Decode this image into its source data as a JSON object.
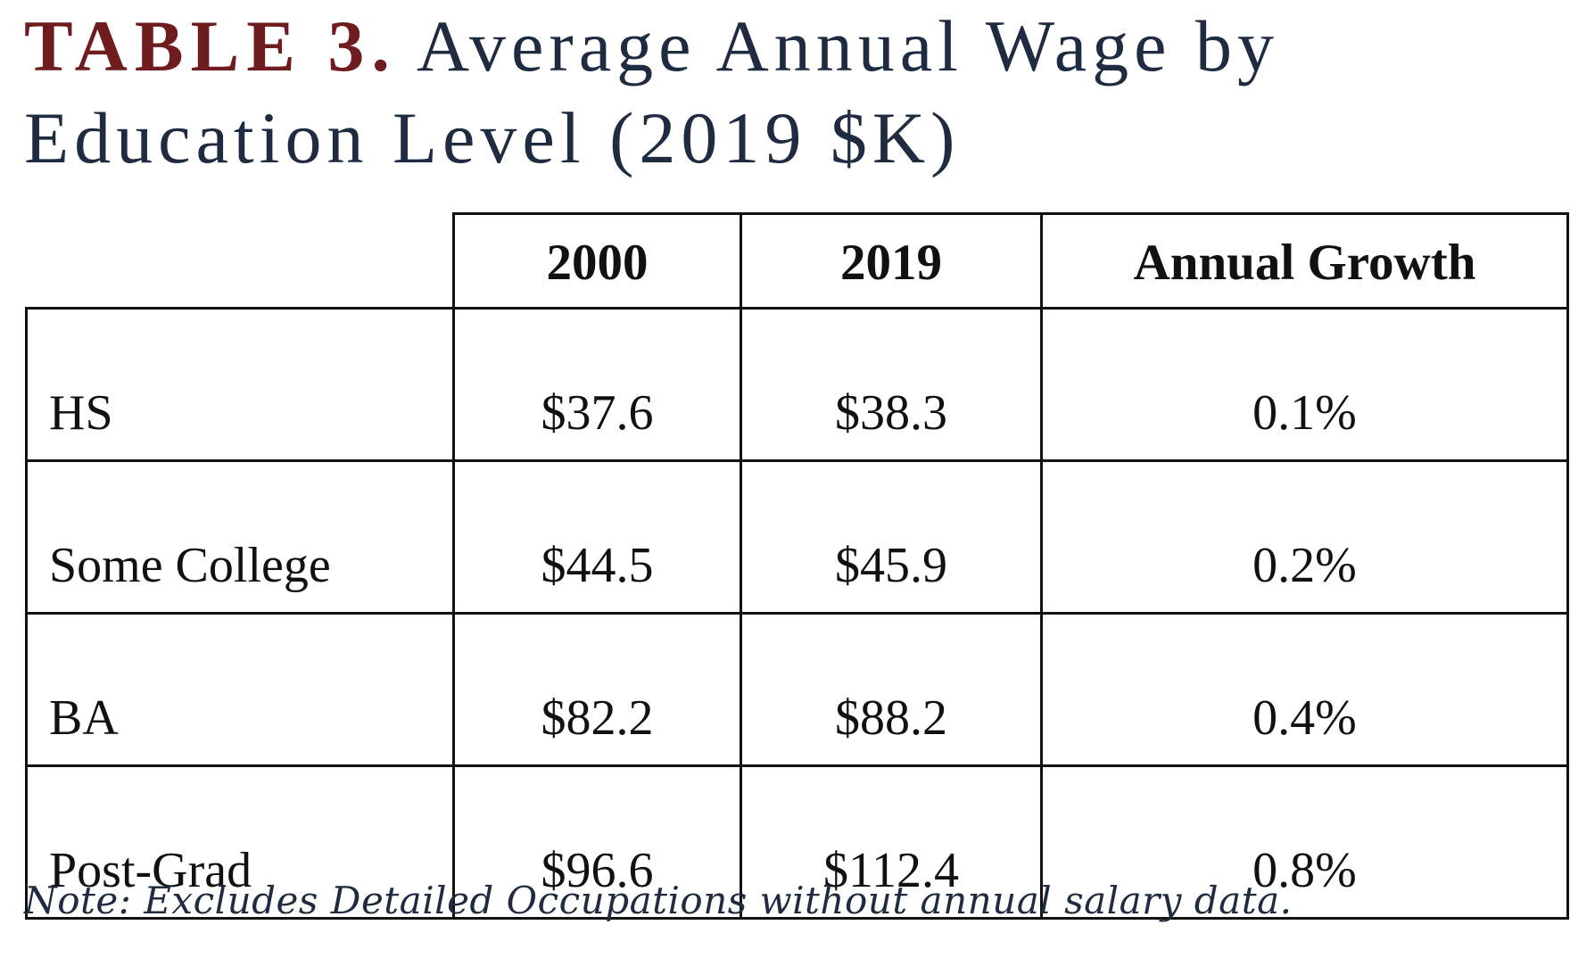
{
  "title": {
    "label": "TABLE 3.",
    "text": "Average Annual Wage by Education Level (2019 $K)"
  },
  "table": {
    "headers": [
      "",
      "2000",
      "2019",
      "Annual Growth"
    ],
    "rows": [
      {
        "label": "HS",
        "y2000": "$37.6",
        "y2019": "$38.3",
        "growth": "0.1%"
      },
      {
        "label": "Some College",
        "y2000": "$44.5",
        "y2019": "$45.9",
        "growth": "0.2%"
      },
      {
        "label": "BA",
        "y2000": "$82.2",
        "y2019": "$88.2",
        "growth": "0.4%"
      },
      {
        "label": "Post-Grad",
        "y2000": "$96.6",
        "y2019": "$112.4",
        "growth": "0.8%"
      }
    ]
  },
  "note": "Note: Excludes Detailed Occupations without annual salary data.",
  "colors": {
    "label_accent": "#6e1c1e",
    "title_text": "#1f2b40",
    "table_text": "#111111"
  }
}
